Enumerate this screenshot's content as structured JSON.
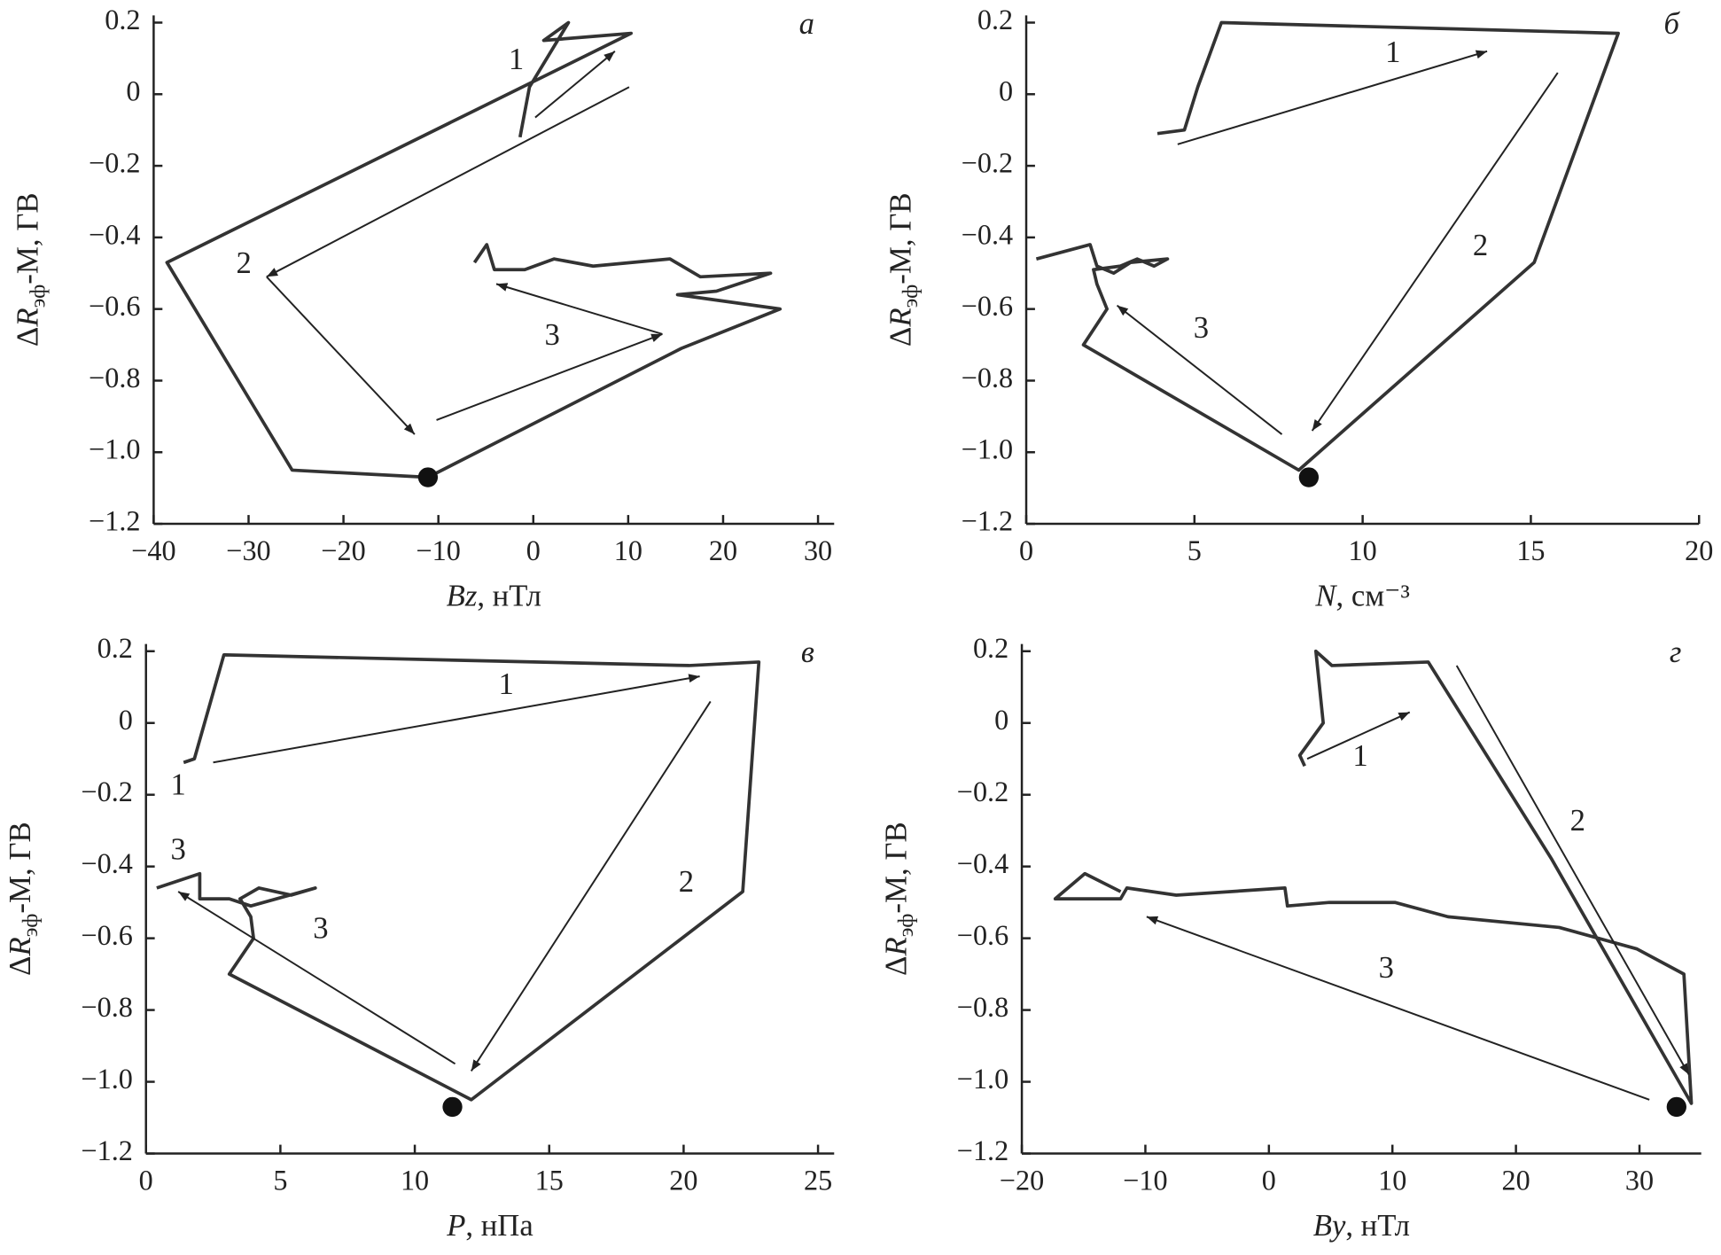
{
  "chart_data": [
    {
      "type": "line",
      "panel_label": "а",
      "color": "#333333",
      "xlabel": [
        "Bz",
        ", нТл"
      ],
      "ylabel": [
        "Δ",
        "R",
        "эф",
        "-M, ГВ"
      ],
      "xlim": [
        -40,
        31.7
      ],
      "ylim": [
        -1.2,
        0.22
      ],
      "xticks": [
        {
          "value": -40,
          "label": "−40"
        },
        {
          "value": -30,
          "label": "−30"
        },
        {
          "value": -20,
          "label": "−20"
        },
        {
          "value": -10,
          "label": "−10"
        },
        0,
        10,
        20,
        30
      ],
      "yticks": [
        {
          "value": -1.2,
          "label": "−1.2"
        },
        {
          "value": -1.0,
          "label": "−1.0"
        },
        {
          "value": -0.8,
          "label": "−0.8"
        },
        {
          "value": -0.6,
          "label": "−0.6"
        },
        {
          "value": -0.4,
          "label": "−0.4"
        },
        {
          "value": -0.2,
          "label": "−0.2"
        },
        0,
        0.2
      ],
      "x": [
        -1.4,
        -0.4,
        3.7,
        1.1,
        10.3,
        -38.6,
        -25.4,
        -11.1,
        15.6,
        26.0,
        15.2,
        19.3,
        25.0,
        17.6,
        14.4,
        6.3,
        2.2,
        -0.9,
        -4.1,
        -4.9,
        -6.2
      ],
      "y": [
        -0.12,
        0.02,
        0.2,
        0.15,
        0.17,
        -0.47,
        -1.05,
        -1.07,
        -0.71,
        -0.6,
        -0.56,
        -0.55,
        -0.5,
        -0.51,
        -0.46,
        -0.48,
        -0.46,
        -0.49,
        -0.49,
        -0.42,
        -0.47
      ],
      "marker": {
        "x": -11.1,
        "y": -1.07
      },
      "arrows": [
        {
          "x1": 0.2,
          "y1": -0.065,
          "x2": 8.6,
          "y2": 0.12
        },
        {
          "x1": 10.1,
          "y1": 0.02,
          "x2": -28.1,
          "y2": -0.51
        },
        {
          "x1": -28.1,
          "y1": -0.51,
          "x2": -12.5,
          "y2": -0.95
        },
        {
          "x1": -10.2,
          "y1": -0.91,
          "x2": 13.6,
          "y2": -0.67
        },
        {
          "x1": 13.6,
          "y1": -0.67,
          "x2": -3.9,
          "y2": -0.53
        }
      ],
      "annotations": [
        {
          "text": "1",
          "x": -1.8,
          "y": 0.09
        },
        {
          "text": "2",
          "x": -30.5,
          "y": -0.48
        },
        {
          "text": "3",
          "x": 2.0,
          "y": -0.68
        }
      ]
    },
    {
      "type": "line",
      "panel_label": "б",
      "color": "#333333",
      "xlabel": [
        "N",
        ", см⁻³"
      ],
      "ylabel": [
        "Δ",
        "R",
        "эф",
        "-M, ГВ"
      ],
      "xlim": [
        0,
        20
      ],
      "ylim": [
        -1.2,
        0.22
      ],
      "xticks": [
        0,
        5,
        10,
        15,
        20
      ],
      "yticks": [
        {
          "value": -1.2,
          "label": "−1.2"
        },
        {
          "value": -1.0,
          "label": "−1.0"
        },
        {
          "value": -0.8,
          "label": "−0.8"
        },
        {
          "value": -0.6,
          "label": "−0.6"
        },
        {
          "value": -0.4,
          "label": "−0.4"
        },
        {
          "value": -0.2,
          "label": "−0.2"
        },
        0,
        0.2
      ],
      "x": [
        3.9,
        4.7,
        5.1,
        5.8,
        17.6,
        15.1,
        8.1,
        1.7,
        2.4,
        2.1,
        2.0,
        2.8,
        3.3,
        3.8,
        4.2,
        3.1,
        2.6,
        2.1,
        1.9,
        0.3
      ],
      "y": [
        -0.11,
        -0.1,
        0.02,
        0.2,
        0.17,
        -0.47,
        -1.05,
        -0.7,
        -0.6,
        -0.53,
        -0.49,
        -0.48,
        -0.46,
        -0.48,
        -0.46,
        -0.47,
        -0.5,
        -0.48,
        -0.42,
        -0.46
      ],
      "marker": {
        "x": 8.4,
        "y": -1.07
      },
      "arrows": [
        {
          "x1": 4.5,
          "y1": -0.14,
          "x2": 13.7,
          "y2": 0.12
        },
        {
          "x1": 15.8,
          "y1": 0.06,
          "x2": 8.5,
          "y2": -0.94
        },
        {
          "x1": 7.6,
          "y1": -0.95,
          "x2": 2.7,
          "y2": -0.59
        }
      ],
      "annotations": [
        {
          "text": "1",
          "x": 10.9,
          "y": 0.11
        },
        {
          "text": "2",
          "x": 13.5,
          "y": -0.43
        },
        {
          "text": "3",
          "x": 5.2,
          "y": -0.66
        }
      ]
    },
    {
      "type": "line",
      "panel_label": "в",
      "color": "#333333",
      "xlabel": [
        "P",
        ", нПа"
      ],
      "ylabel": [
        "Δ",
        "R",
        "эф",
        "-M, ГВ"
      ],
      "xlim": [
        0,
        25.6
      ],
      "ylim": [
        -1.2,
        0.22
      ],
      "xticks": [
        0,
        5,
        10,
        15,
        20,
        25
      ],
      "yticks": [
        {
          "value": -1.2,
          "label": "−1.2"
        },
        {
          "value": -1.0,
          "label": "−1.0"
        },
        {
          "value": -0.8,
          "label": "−0.8"
        },
        {
          "value": -0.6,
          "label": "−0.6"
        },
        {
          "value": -0.4,
          "label": "−0.4"
        },
        {
          "value": -0.2,
          "label": "−0.2"
        },
        0,
        0.2
      ],
      "x": [
        1.4,
        1.8,
        2.9,
        20.2,
        22.8,
        22.2,
        12.1,
        3.1,
        4.0,
        3.9,
        3.5,
        4.2,
        5.4,
        6.3,
        3.9,
        3.1,
        2.0,
        2.0,
        0.4
      ],
      "y": [
        -0.11,
        -0.1,
        0.19,
        0.16,
        0.17,
        -0.47,
        -1.05,
        -0.7,
        -0.6,
        -0.54,
        -0.49,
        -0.46,
        -0.48,
        -0.46,
        -0.51,
        -0.49,
        -0.49,
        -0.42,
        -0.46
      ],
      "marker": {
        "x": 11.4,
        "y": -1.07
      },
      "arrows": [
        {
          "x1": 2.5,
          "y1": -0.11,
          "x2": 20.6,
          "y2": 0.13
        },
        {
          "x1": 21.0,
          "y1": 0.06,
          "x2": 12.1,
          "y2": -0.97
        },
        {
          "x1": 11.5,
          "y1": -0.95,
          "x2": 1.2,
          "y2": -0.47
        }
      ],
      "annotations": [
        {
          "text": "1",
          "x": 13.4,
          "y": 0.1
        },
        {
          "text": "1",
          "x": 1.2,
          "y": -0.18
        },
        {
          "text": "2",
          "x": 20.1,
          "y": -0.45
        },
        {
          "text": "3",
          "x": 1.2,
          "y": -0.36
        },
        {
          "text": "3",
          "x": 6.5,
          "y": -0.58
        }
      ]
    },
    {
      "type": "line",
      "panel_label": "г",
      "color": "#333333",
      "xlabel": [
        "By",
        ", нТл"
      ],
      "ylabel": [
        "Δ",
        "R",
        "эф",
        "-M, ГВ"
      ],
      "xlim": [
        -20,
        35
      ],
      "ylim": [
        -1.2,
        0.22
      ],
      "xticks": [
        {
          "value": -20,
          "label": "−20"
        },
        {
          "value": -10,
          "label": "−10"
        },
        0,
        10,
        20,
        30
      ],
      "yticks": [
        {
          "value": -1.2,
          "label": "−1.2"
        },
        {
          "value": -1.0,
          "label": "−1.0"
        },
        {
          "value": -0.8,
          "label": "−0.8"
        },
        {
          "value": -0.6,
          "label": "−0.6"
        },
        {
          "value": -0.4,
          "label": "−0.4"
        },
        {
          "value": -0.2,
          "label": "−0.2"
        },
        0,
        0.2
      ],
      "x": [
        2.9,
        2.5,
        4.4,
        3.8,
        5.1,
        12.9,
        22.9,
        34.2,
        33.6,
        29.8,
        23.5,
        14.5,
        10.2,
        4.9,
        1.5,
        1.3,
        -7.5,
        -11.5,
        -12.0,
        -17.3,
        -14.9,
        -12.0
      ],
      "y": [
        -0.12,
        -0.09,
        0.0,
        0.2,
        0.16,
        0.17,
        -0.38,
        -1.06,
        -0.7,
        -0.63,
        -0.57,
        -0.54,
        -0.5,
        -0.5,
        -0.51,
        -0.46,
        -0.48,
        -0.46,
        -0.49,
        -0.49,
        -0.42,
        -0.47
      ],
      "marker": {
        "x": 33.0,
        "y": -1.07
      },
      "arrows": [
        {
          "x1": 3.1,
          "y1": -0.1,
          "x2": 11.4,
          "y2": 0.03
        },
        {
          "x1": 15.2,
          "y1": 0.16,
          "x2": 34.0,
          "y2": -0.98
        },
        {
          "x1": 30.8,
          "y1": -1.05,
          "x2": -9.9,
          "y2": -0.54
        }
      ],
      "annotations": [
        {
          "text": "1",
          "x": 7.4,
          "y": -0.1
        },
        {
          "text": "2",
          "x": 25.0,
          "y": -0.28
        },
        {
          "text": "3",
          "x": 9.5,
          "y": -0.69
        }
      ]
    }
  ]
}
